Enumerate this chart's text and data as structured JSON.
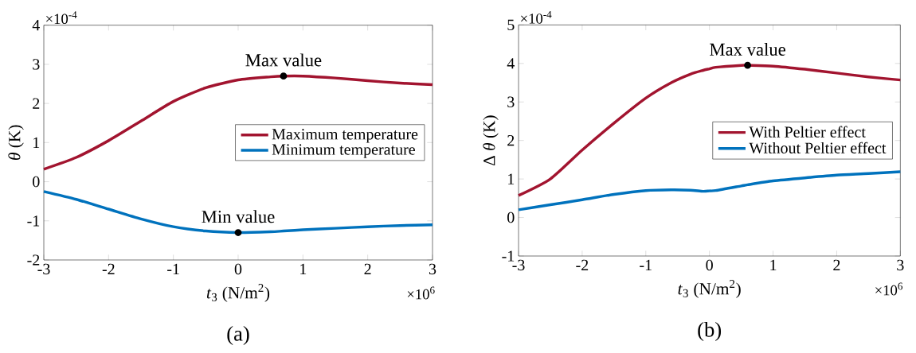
{
  "chart_data": [
    {
      "type": "line",
      "xlabel": "*t*$_{3}$ (N/m$^{2}$)",
      "ylabel": "*θ* (K)",
      "xlim": [
        -3,
        3
      ],
      "ylim": [
        -2,
        4
      ],
      "xticks": [
        -3,
        -2,
        -1,
        0,
        1,
        2,
        3
      ],
      "yticks": [
        -2,
        -1,
        0,
        1,
        2,
        3,
        4
      ],
      "legend": "right",
      "x": [
        -3,
        -2.5,
        -2,
        -1.5,
        -1,
        -0.5,
        0,
        0.5,
        0.7,
        1,
        1.5,
        2,
        2.5,
        3
      ],
      "series": [
        {
          "name": "Maximum temperature",
          "color": "#a2142f",
          "values": [
            0.32,
            0.62,
            1.05,
            1.55,
            2.05,
            2.4,
            2.6,
            2.68,
            2.7,
            2.7,
            2.65,
            2.58,
            2.52,
            2.48
          ]
        },
        {
          "name": "Minimum temperature",
          "color": "#0072bd",
          "values": [
            -0.25,
            -0.45,
            -0.7,
            -0.95,
            -1.15,
            -1.26,
            -1.3,
            -1.28,
            -1.26,
            -1.23,
            -1.19,
            -1.15,
            -1.12,
            -1.1
          ]
        }
      ],
      "annotations": [
        "×10$^{-4}$",
        "×10$^{6}$",
        "(a)",
        {
          "text": "Max value",
          "x": 0.7,
          "y": 2.7
        },
        {
          "text": "Min value",
          "x": 0,
          "y": -1.3
        }
      ]
    },
    {
      "type": "line",
      "xlabel": "*t*$_{3}$ (N/m$^{2}$)",
      "ylabel": "Δ *θ* (K)",
      "xlim": [
        -3,
        3
      ],
      "ylim": [
        -1,
        5
      ],
      "xticks": [
        -3,
        -2,
        -1,
        0,
        1,
        2,
        3
      ],
      "yticks": [
        -1,
        0,
        1,
        2,
        3,
        4,
        5
      ],
      "legend": "right",
      "x": [
        -3,
        -2.5,
        -2,
        -1.5,
        -1,
        -0.6,
        -0.3,
        -0.1,
        0,
        0.1,
        0.5,
        0.6,
        1,
        1.5,
        2,
        2.5,
        3
      ],
      "series": [
        {
          "name": "With Peltier effect",
          "color": "#a2142f",
          "values": [
            0.57,
            1.0,
            1.75,
            2.45,
            3.1,
            3.5,
            3.72,
            3.82,
            3.86,
            3.9,
            3.95,
            3.95,
            3.93,
            3.85,
            3.75,
            3.65,
            3.57
          ]
        },
        {
          "name": "Without Peltier effect",
          "color": "#0072bd",
          "values": [
            0.2,
            0.33,
            0.46,
            0.6,
            0.7,
            0.72,
            0.71,
            0.68,
            0.69,
            0.7,
            0.82,
            0.85,
            0.95,
            1.03,
            1.1,
            1.14,
            1.19
          ]
        }
      ],
      "annotations": [
        "×10$^{-4}$",
        "×10$^{6}$",
        "(b)",
        {
          "text": "Max value",
          "x": 0.6,
          "y": 3.95
        }
      ]
    }
  ]
}
